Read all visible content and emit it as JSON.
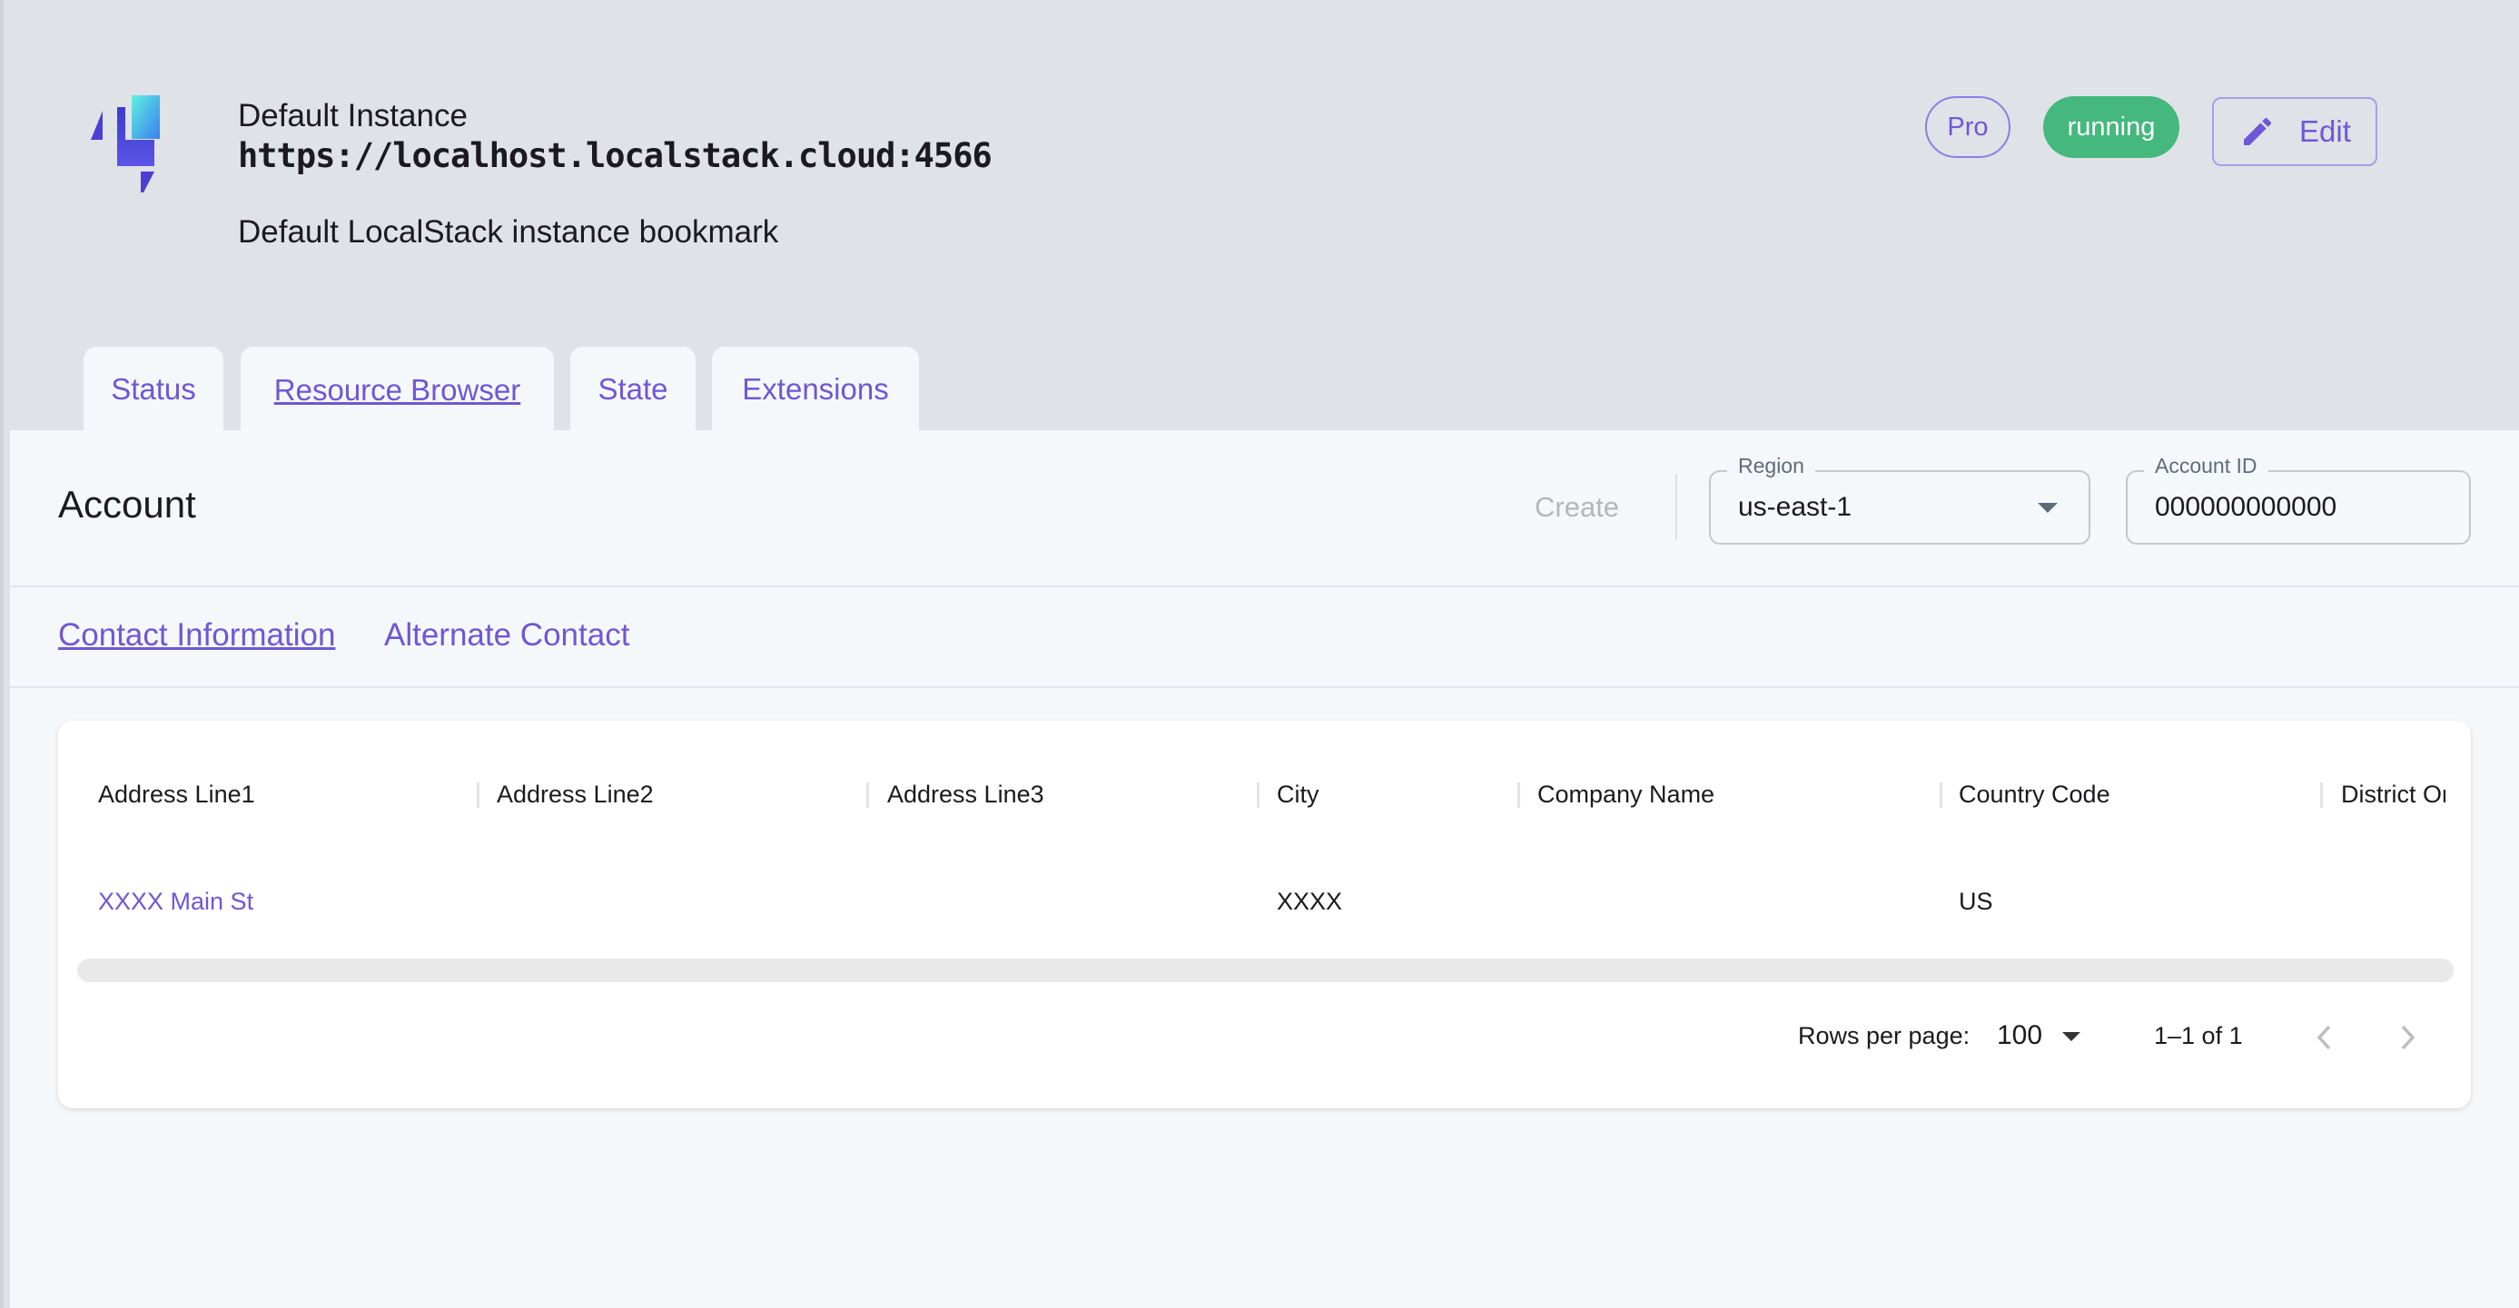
{
  "header": {
    "title": "Default Instance",
    "url": "https://localhost.localstack.cloud:4566",
    "description": "Default LocalStack instance bookmark",
    "plan_badge": "Pro",
    "status_badge": "running",
    "edit_label": "Edit",
    "status_color": "#44b87d",
    "accent": "#6f57d6"
  },
  "tabs": [
    {
      "label": "Status"
    },
    {
      "label": "Resource Browser",
      "active": true
    },
    {
      "label": "State"
    },
    {
      "label": "Extensions"
    }
  ],
  "toolbar": {
    "title": "Account",
    "create_label": "Create",
    "region_label": "Region",
    "region_value": "us-east-1",
    "account_label": "Account ID",
    "account_value": "000000000000"
  },
  "subtabs": [
    {
      "label": "Contact Information",
      "active": true
    },
    {
      "label": "Alternate Contact"
    }
  ],
  "table": {
    "columns": [
      "Address Line1",
      "Address Line2",
      "Address Line3",
      "City",
      "Company Name",
      "Country Code",
      "District Or"
    ],
    "rows": [
      [
        "XXXX Main St",
        "",
        "",
        "XXXX",
        "",
        "US",
        ""
      ]
    ]
  },
  "pagination": {
    "rows_per_page_label": "Rows per page:",
    "rows_per_page": "100",
    "range": "1–1 of 1"
  }
}
